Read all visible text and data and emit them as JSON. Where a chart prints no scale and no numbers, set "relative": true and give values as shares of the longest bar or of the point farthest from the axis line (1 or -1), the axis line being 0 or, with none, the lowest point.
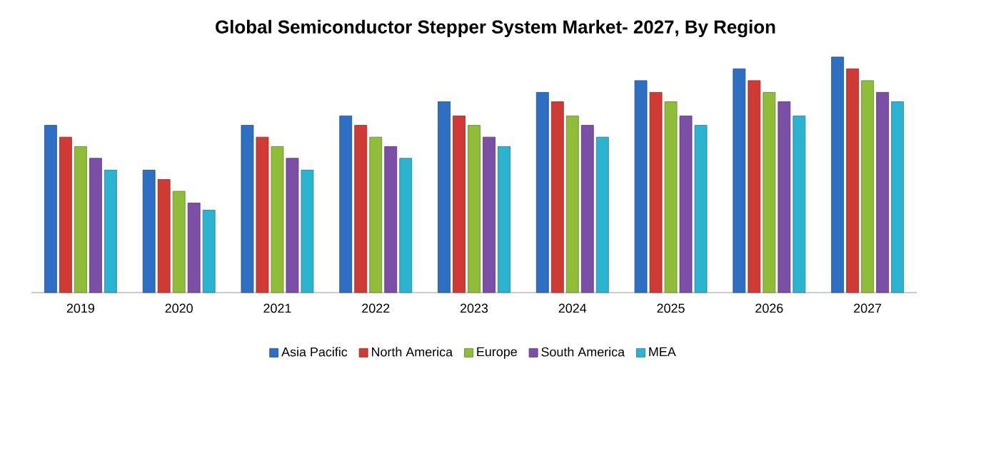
{
  "chart_data": {
    "type": "bar",
    "title": "Global Semiconductor Stepper System Market- 2027, By Region",
    "relative": true,
    "legend": "bottom",
    "categories": [
      "2019",
      "2020",
      "2021",
      "2022",
      "2023",
      "2024",
      "2025",
      "2026",
      "2027"
    ],
    "series": [
      {
        "name": "Asia Pacific",
        "color": "#2e6fc4",
        "values": [
          0.71,
          0.52,
          0.71,
          0.75,
          0.81,
          0.85,
          0.9,
          0.95,
          1
        ]
      },
      {
        "name": "North America",
        "color": "#d03a35",
        "values": [
          0.66,
          0.48,
          0.66,
          0.71,
          0.75,
          0.81,
          0.85,
          0.9,
          0.95
        ]
      },
      {
        "name": "Europe",
        "color": "#8fbd3a",
        "values": [
          0.62,
          0.43,
          0.62,
          0.66,
          0.71,
          0.75,
          0.81,
          0.85,
          0.9
        ]
      },
      {
        "name": "South America",
        "color": "#7b4fa6",
        "values": [
          0.57,
          0.38,
          0.57,
          0.62,
          0.66,
          0.71,
          0.75,
          0.81,
          0.85
        ]
      },
      {
        "name": "MEA",
        "color": "#2cb3cf",
        "values": [
          0.52,
          0.35,
          0.52,
          0.57,
          0.62,
          0.66,
          0.71,
          0.75,
          0.81
        ]
      }
    ]
  }
}
